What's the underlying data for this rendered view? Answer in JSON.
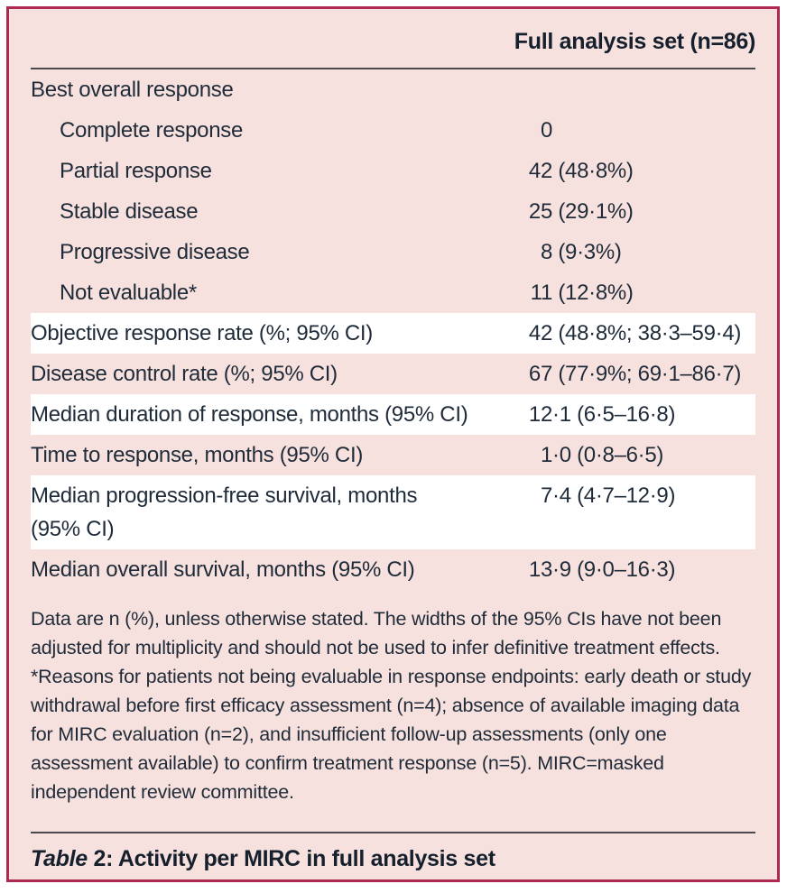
{
  "table": {
    "header": {
      "column_label": "Full analysis set (n=86)"
    },
    "rows": [
      {
        "label": "Best overall response",
        "num": "",
        "rest": "",
        "indent": false,
        "highlight": false
      },
      {
        "label": "Complete response",
        "num": "0",
        "rest": "",
        "indent": true,
        "highlight": false
      },
      {
        "label": "Partial response",
        "num": "42",
        "rest": " (48·8%)",
        "indent": true,
        "highlight": false
      },
      {
        "label": "Stable disease",
        "num": "25",
        "rest": " (29·1%)",
        "indent": true,
        "highlight": false
      },
      {
        "label": "Progressive disease",
        "num": "8",
        "rest": " (9·3%)",
        "indent": true,
        "highlight": false
      },
      {
        "label": "Not evaluable*",
        "num": "11",
        "rest": " (12·8%)",
        "indent": true,
        "highlight": false
      },
      {
        "label": "Objective response rate (%; 95% CI)",
        "num": "42",
        "rest": " (48·8%; 38·3–59·4)",
        "indent": false,
        "highlight": true
      },
      {
        "label": "Disease control rate (%; 95% CI)",
        "num": "67",
        "rest": " (77·9%; 69·1–86·7)",
        "indent": false,
        "highlight": false
      },
      {
        "label": "Median duration of response, months (95% CI)",
        "num": "12",
        "rest": "·1 (6·5–16·8)",
        "indent": false,
        "highlight": true
      },
      {
        "label": "Time to response, months (95% CI)",
        "num": "1",
        "rest": "·0 (0·8–6·5)",
        "indent": false,
        "highlight": false
      },
      {
        "label": "Median progression-free survival, months (95% CI)",
        "num": "7",
        "rest": "·4 (4·7–12·9)",
        "indent": false,
        "highlight": true
      },
      {
        "label": "Median overall survival, months (95% CI)",
        "num": "13",
        "rest": "·9 (9·0–16·3)",
        "indent": false,
        "highlight": false
      }
    ],
    "footnote": "Data are n (%), unless otherwise stated. The widths of the 95% CIs have not been adjusted for multiplicity and should not be used to infer definitive treatment effects. *Reasons for patients not being evaluable in response endpoints: early death or study withdrawal before first efficacy assessment (n=4); absence of available imaging data for MIRC evaluation (n=2), and insufficient follow-up assessments (only one assessment available) to confirm treatment response (n=5). MIRC=masked independent review committee.",
    "caption": {
      "label_italic": "Table",
      "label_number": "2:",
      "text": "Activity per MIRC in full analysis set"
    }
  },
  "colors": {
    "panel_bg": "#f7e1de",
    "frame": "#ad2a52",
    "rule": "#4a4a4e",
    "text": "#1f2b38",
    "text_strong": "#16202d",
    "highlight": "#ffffff"
  }
}
